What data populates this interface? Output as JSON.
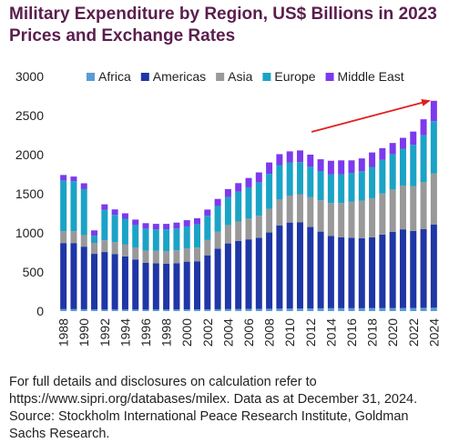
{
  "title": "Military Expenditure by Region, US$ Billions in 2023\nPrices and Exchange Rates",
  "footnote": "For full details and disclosures on calculation refer to https://www.sipri.org/databases/milex. Data as at December 31, 2024. Source: Stockholm International Peace Research Institute, Goldman Sachs Research.",
  "chart_data": {
    "type": "bar",
    "stacked": true,
    "title": "Military Expenditure by Region, US$ Billions in 2023 Prices and Exchange Rates",
    "xlabel": "",
    "ylabel": "",
    "ylim": [
      0,
      3000
    ],
    "yticks": [
      0,
      500,
      1000,
      1500,
      2000,
      2500,
      3000
    ],
    "grid": false,
    "legend_position": "top",
    "x_tick_labels": [
      "1988",
      "1990",
      "1992",
      "1994",
      "1996",
      "1998",
      "2000",
      "2002",
      "2004",
      "2006",
      "2008",
      "2010",
      "2012",
      "2014",
      "2016",
      "2018",
      "2020",
      "2022",
      "2024"
    ],
    "categories": [
      "1988",
      "1989",
      "1990",
      "1991",
      "1992",
      "1993",
      "1994",
      "1995",
      "1996",
      "1997",
      "1998",
      "1999",
      "2000",
      "2001",
      "2002",
      "2003",
      "2004",
      "2005",
      "2006",
      "2007",
      "2008",
      "2009",
      "2010",
      "2011",
      "2012",
      "2013",
      "2014",
      "2015",
      "2016",
      "2017",
      "2018",
      "2019",
      "2020",
      "2021",
      "2022",
      "2023",
      "2024"
    ],
    "series": [
      {
        "name": "Africa",
        "color": "#5b9bd5",
        "values": [
          25,
          25,
          24,
          22,
          20,
          20,
          20,
          20,
          19,
          20,
          20,
          21,
          22,
          22,
          23,
          24,
          25,
          26,
          27,
          28,
          30,
          31,
          32,
          34,
          35,
          36,
          37,
          37,
          37,
          37,
          38,
          38,
          39,
          40,
          40,
          42,
          43
        ]
      },
      {
        "name": "Americas",
        "color": "#1f36a6",
        "values": [
          845,
          845,
          800,
          710,
          735,
          710,
          680,
          640,
          600,
          590,
          585,
          590,
          610,
          615,
          690,
          775,
          840,
          870,
          890,
          910,
          975,
          1065,
          1100,
          1100,
          1040,
          980,
          925,
          905,
          900,
          895,
          905,
          940,
          975,
          1005,
          985,
          1005,
          1065
        ]
      },
      {
        "name": "Asia",
        "color": "#999999",
        "values": [
          150,
          150,
          145,
          140,
          150,
          150,
          150,
          150,
          155,
          160,
          160,
          165,
          170,
          175,
          195,
          215,
          235,
          250,
          265,
          280,
          300,
          330,
          345,
          360,
          380,
          400,
          420,
          440,
          460,
          480,
          500,
          525,
          540,
          560,
          570,
          600,
          650
        ]
      },
      {
        "name": "Europe",
        "color": "#1ba3c6",
        "values": [
          650,
          640,
          590,
          90,
          390,
          350,
          330,
          290,
          280,
          275,
          280,
          280,
          280,
          295,
          310,
          330,
          360,
          380,
          400,
          425,
          450,
          440,
          420,
          410,
          390,
          375,
          365,
          365,
          370,
          375,
          400,
          430,
          450,
          470,
          530,
          600,
          670
        ]
      },
      {
        "name": "Middle East",
        "color": "#7c3aed",
        "values": [
          70,
          60,
          75,
          70,
          70,
          70,
          70,
          70,
          70,
          70,
          70,
          75,
          80,
          80,
          80,
          90,
          100,
          110,
          120,
          130,
          145,
          140,
          145,
          150,
          155,
          150,
          175,
          180,
          160,
          165,
          185,
          150,
          145,
          140,
          170,
          205,
          260
        ]
      }
    ],
    "annotation": "red upward arrow from 2012 to 2023"
  }
}
